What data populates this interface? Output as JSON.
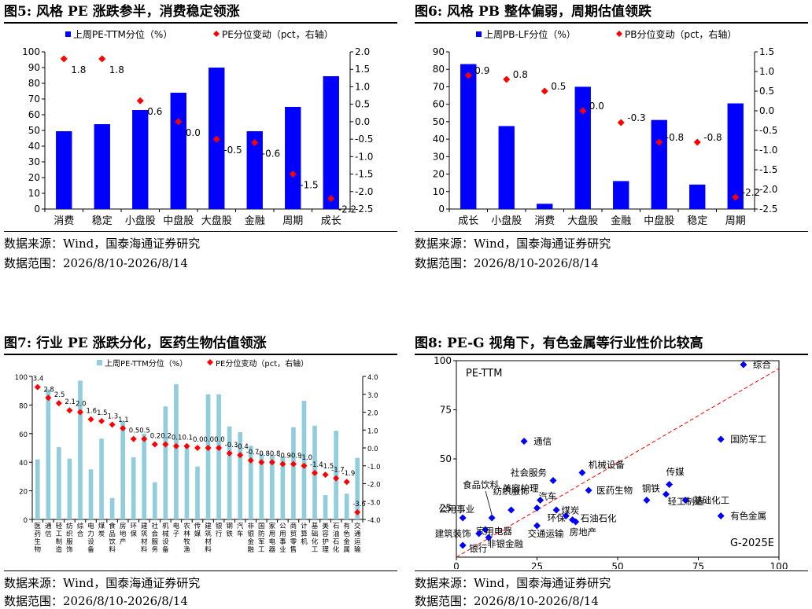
{
  "colors": {
    "bar_blue": "#0000ff",
    "bar_light": "#92cddc",
    "diamond_red": "#ff0000",
    "scatter_blue": "#0000ff",
    "trend_red": "#ff0000"
  },
  "panels": [
    {
      "title": "图5:  风格 PE 涨跌参半，消费稳定领涨",
      "source": "数据来源：Wind，国泰海通证券研究",
      "range": "数据范围：2026/8/10-2026/8/14"
    },
    {
      "title": "图6:  风格 PB 整体偏弱，周期估值领跌",
      "source": "数据来源：Wind，国泰海通证券研究",
      "range": "数据范围：2026/8/10-2026/8/14"
    },
    {
      "title": "图7:  行业 PE 涨跌分化，医药生物估值领涨",
      "source": "数据来源：Wind，国泰海通证券研究",
      "range": "数据范围：2026/8/10-2026/8/14"
    },
    {
      "title": "图8:  PE-G 视角下，有色金属等行业性价比较高",
      "source": "数据来源：Wind，国泰海通证券研究",
      "range": "数据范围：2026/8/10-2026/8/14"
    }
  ],
  "chart_data": [
    {
      "type": "bar",
      "legend_bar": "上周PE-TTM分位（%）",
      "legend_point": "PE分位变动（pct，右轴）",
      "categories": [
        "消费",
        "稳定",
        "小盘股",
        "中盘股",
        "大盘股",
        "金融",
        "周期",
        "成长"
      ],
      "series": [
        {
          "name": "上周PE-TTM分位（%）",
          "values": [
            49.5,
            54,
            63,
            74,
            90,
            49.5,
            65,
            84.5
          ]
        },
        {
          "name": "PE分位变动（pct，右轴）",
          "values": [
            1.8,
            1.8,
            0.6,
            0.0,
            -0.5,
            -0.6,
            -1.5,
            -2.2
          ]
        }
      ],
      "point_labels": [
        "1.8",
        "1.8",
        "0.6",
        "0.0",
        "-0.5",
        "-0.6",
        "-1.5",
        "-2.2"
      ],
      "ylim": [
        0,
        100
      ],
      "y_ticks": [
        "0",
        "10",
        "20",
        "30",
        "40",
        "50",
        "60",
        "70",
        "80",
        "90",
        "100"
      ],
      "y2lim": [
        -2.5,
        2.0
      ],
      "y2_ticks": [
        "-2.5",
        "-2.0",
        "-1.5",
        "-1.0",
        "-0.5",
        "0.0",
        "0.5",
        "1.0",
        "1.5",
        "2.0"
      ],
      "legend": "top"
    },
    {
      "type": "bar",
      "legend_bar": "上周PB-LF分位（%）",
      "legend_point": "PB分位变动（pct，右轴）",
      "categories": [
        "成长",
        "小盘股",
        "消费",
        "大盘股",
        "金融",
        "中盘股",
        "稳定",
        "周期"
      ],
      "series": [
        {
          "name": "上周PB-LF分位（%）",
          "values": [
            83,
            47.5,
            3,
            70,
            16,
            51,
            14,
            60.5
          ]
        },
        {
          "name": "PB分位变动（pct，右轴）",
          "values": [
            0.9,
            0.8,
            0.5,
            0.0,
            -0.3,
            -0.8,
            -0.8,
            -2.2
          ]
        }
      ],
      "point_labels": [
        "0.9",
        "0.8",
        "0.5",
        "0.0",
        "-0.3",
        "-0.8",
        "-0.8",
        "-2.2"
      ],
      "ylim": [
        0,
        90
      ],
      "y_ticks": [
        "0",
        "10",
        "20",
        "30",
        "40",
        "50",
        "60",
        "70",
        "80",
        "90"
      ],
      "y2lim": [
        -2.5,
        1.5
      ],
      "y2_ticks": [
        "-2.5",
        "-2.0",
        "-1.5",
        "-1.0",
        "-0.5",
        "0.0",
        "0.5",
        "1.0",
        "1.5"
      ],
      "legend": "top"
    },
    {
      "type": "bar",
      "legend_bar": "上周PE-TTM分位（%）",
      "legend_point": "PE分位变动（pct，右轴）",
      "categories": [
        "医药生物",
        "通信",
        "轻工制造",
        "纺织服饰",
        "综合",
        "电力设备",
        "煤炭",
        "食品饮料",
        "房地产",
        "环保",
        "建筑材料",
        "社会服务",
        "机械设备",
        "电子",
        "农林牧渔",
        "传媒",
        "建筑材料",
        "银行",
        "钢铁",
        "汽车",
        "非银金融",
        "国防军工",
        "家用电器",
        "公用事业",
        "商贸零售",
        "计算机",
        "基础化工",
        "美容护理",
        "石油石化",
        "有色金属",
        "交通运输"
      ],
      "series": [
        {
          "name": "上周PE-TTM分位（%）",
          "values": [
            42,
            91,
            50.5,
            42.5,
            97,
            35,
            56.5,
            15,
            69,
            43.5,
            60,
            26,
            79,
            94.5,
            50.5,
            37,
            87.5,
            87.5,
            65,
            61,
            51.5,
            46,
            45,
            44,
            64.5,
            83,
            65.5,
            17,
            62,
            18,
            43
          ]
        },
        {
          "name": "PE分位变动（pct，右轴）",
          "values": [
            3.4,
            2.8,
            2.5,
            2.1,
            2.0,
            1.6,
            1.5,
            1.3,
            1.1,
            0.5,
            0.5,
            0.2,
            0.2,
            0.1,
            0.1,
            0.0,
            0.0,
            0.0,
            -0.3,
            -0.4,
            -0.7,
            -0.8,
            -0.8,
            -0.9,
            -0.9,
            -1.0,
            -1.4,
            -1.5,
            -1.7,
            -1.9,
            -3.6
          ]
        }
      ],
      "point_labels": [
        "3.4",
        "2.8",
        "2.5",
        "2.1",
        "2.0",
        "1.6",
        "1.5",
        "1.3",
        "1.1",
        "0.5",
        "0.5",
        "0.2",
        "0.2",
        "0.1",
        "0.1",
        "0.0",
        "0.0",
        "0.0",
        "-0.3",
        "-0.4",
        "-0.7",
        "-0.8",
        "-0.8",
        "-0.9",
        "-0.9",
        "-1.0",
        "-1.4",
        "-1.5",
        "-1.7",
        "-1.9",
        "-3.6"
      ],
      "ylim": [
        0,
        100
      ],
      "y_ticks": [
        "0",
        "20",
        "40",
        "60",
        "80",
        "100"
      ],
      "y2lim": [
        -4.0,
        4.0
      ],
      "y2_ticks": [
        "-4.0",
        "-3.0",
        "-2.0",
        "-1.0",
        "0.0",
        "1.0",
        "2.0",
        "3.0",
        "4.0"
      ],
      "legend": "top"
    },
    {
      "type": "scatter",
      "series_label": "PE-TTM",
      "x_axis_label": "G-2025E",
      "xlim": [
        0,
        100
      ],
      "ylim": [
        0,
        100
      ],
      "x_ticks": [
        "0",
        "25",
        "50",
        "75",
        "100"
      ],
      "y_ticks": [
        "25",
        "50",
        "75",
        "100"
      ],
      "points": [
        {
          "name": "综合",
          "x": 89,
          "y": 98
        },
        {
          "name": "通信",
          "x": 21,
          "y": 59
        },
        {
          "name": "国防军工",
          "x": 82,
          "y": 60
        },
        {
          "name": "社会服务",
          "x": 30,
          "y": 39
        },
        {
          "name": "机械设备",
          "x": 39,
          "y": 43
        },
        {
          "name": "传媒",
          "x": 66,
          "y": 37
        },
        {
          "name": "医药生物",
          "x": 41,
          "y": 34
        },
        {
          "name": "钢铁",
          "x": 59,
          "y": 29
        },
        {
          "name": "基础化工",
          "x": 71,
          "y": 29
        },
        {
          "name": "轻工制造",
          "x": 65,
          "y": 32
        },
        {
          "name": "美容护理",
          "x": 26,
          "y": 29
        },
        {
          "name": "汽车",
          "x": 25,
          "y": 25
        },
        {
          "name": "纺织服饰",
          "x": 17,
          "y": 24
        },
        {
          "name": "食品饮料",
          "x": 11,
          "y": 20
        },
        {
          "name": "公用事业",
          "x": 2,
          "y": 20
        },
        {
          "name": "环保",
          "x": 31,
          "y": 24
        },
        {
          "name": "煤炭",
          "x": 34,
          "y": 21
        },
        {
          "name": "石油石化",
          "x": 36,
          "y": 19
        },
        {
          "name": "房地产",
          "x": 37,
          "y": 18
        },
        {
          "name": "有色金属",
          "x": 82,
          "y": 21
        },
        {
          "name": "家用电器",
          "x": 9,
          "y": 14
        },
        {
          "name": "交通运输",
          "x": 25,
          "y": 16
        },
        {
          "name": "建筑装饰",
          "x": 7,
          "y": 12
        },
        {
          "name": "银行",
          "x": 2,
          "y": 6
        },
        {
          "name": "非银金融",
          "x": 10,
          "y": 10
        }
      ],
      "trendline": {
        "from": [
          0,
          0
        ],
        "to": [
          100,
          96
        ]
      }
    }
  ]
}
